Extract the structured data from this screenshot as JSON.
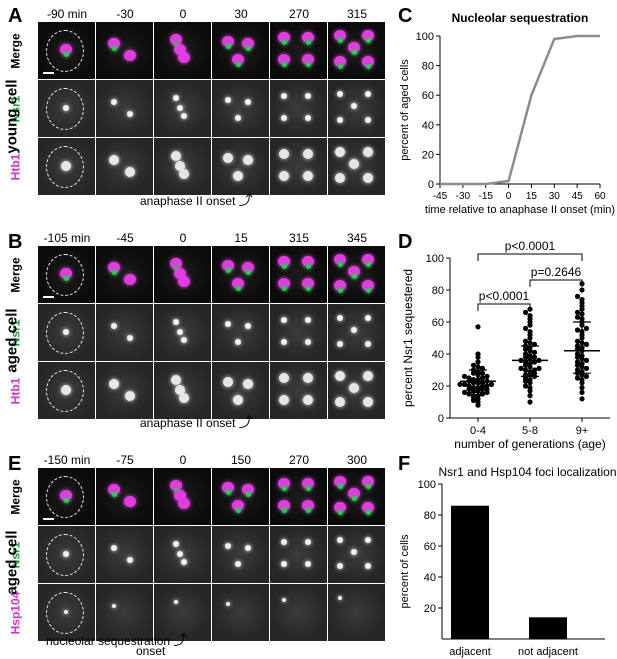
{
  "panels": {
    "A": {
      "letter": "A",
      "cell_type": "young cell",
      "timepoints": [
        "-90 min",
        "-30",
        "0",
        "30",
        "270",
        "315"
      ],
      "rows": [
        "Merge",
        "Nsr1",
        "Htb1"
      ],
      "row_colors": [
        "#000000",
        "#1a9e3a",
        "#d634c8"
      ],
      "onset_label": "anaphase II onset"
    },
    "B": {
      "letter": "B",
      "cell_type": "aged cell",
      "timepoints": [
        "-105 min",
        "-45",
        "0",
        "15",
        "315",
        "345"
      ],
      "rows": [
        "Merge",
        "Nsr1",
        "Htb1"
      ],
      "row_colors": [
        "#000000",
        "#1a9e3a",
        "#d634c8"
      ],
      "onset_label": "anaphase II onset"
    },
    "E": {
      "letter": "E",
      "cell_type": "aged cell",
      "timepoints": [
        "-150 min",
        "-75",
        "0",
        "150",
        "270",
        "300"
      ],
      "rows": [
        "Merge",
        "Nsr1",
        "Hsp104"
      ],
      "row_colors": [
        "#000000",
        "#1a9e3a",
        "#d634c8"
      ],
      "onset_label_line1": "nucleolar sequestration",
      "onset_label_line2": "onset"
    },
    "C": {
      "letter": "C"
    },
    "D": {
      "letter": "D"
    },
    "F": {
      "letter": "F"
    }
  },
  "chart_data": [
    {
      "id": "C",
      "type": "line",
      "title": "Nucleolar sequestration",
      "xlabel": "time relative to anaphase II onset (min)",
      "ylabel": "percent of aged cells",
      "x": [
        -45,
        -30,
        -15,
        0,
        15,
        30,
        45,
        60
      ],
      "x_ticks": [
        "-45",
        "-30",
        "-15",
        "0",
        "15",
        "30",
        "45",
        "60"
      ],
      "y": [
        0,
        0,
        0,
        2,
        60,
        98,
        100,
        100
      ],
      "y_ticks": [
        "0",
        "20",
        "40",
        "60",
        "80",
        "100"
      ],
      "ylim": [
        0,
        100
      ],
      "line_color": "#8c8c8c"
    },
    {
      "id": "D",
      "type": "scatter",
      "xlabel": "number of generations (age)",
      "ylabel": "percent Nsr1 sequestered",
      "categories": [
        "0-4",
        "5-8",
        "9+"
      ],
      "y_ticks": [
        "0",
        "20",
        "40",
        "60",
        "80",
        "100"
      ],
      "ylim": [
        0,
        100
      ],
      "means": [
        23,
        36,
        42
      ],
      "sd_low": [
        16,
        26,
        28
      ],
      "sd_high": [
        30,
        45,
        60
      ],
      "groups": [
        [
          8,
          10,
          11,
          12,
          13,
          14,
          14,
          15,
          15,
          16,
          16,
          17,
          17,
          18,
          18,
          18,
          19,
          19,
          20,
          20,
          20,
          21,
          21,
          21,
          22,
          22,
          22,
          23,
          23,
          24,
          24,
          25,
          25,
          26,
          26,
          27,
          28,
          28,
          29,
          30,
          31,
          32,
          33,
          35,
          38,
          40,
          57
        ],
        [
          10,
          14,
          17,
          19,
          20,
          22,
          23,
          24,
          25,
          26,
          27,
          27,
          28,
          29,
          30,
          30,
          31,
          31,
          32,
          33,
          34,
          35,
          35,
          36,
          36,
          37,
          38,
          38,
          39,
          40,
          41,
          42,
          43,
          44,
          45,
          46,
          47,
          48,
          50,
          52,
          54,
          56,
          58,
          60,
          62,
          64,
          66,
          68
        ],
        [
          12,
          16,
          19,
          22,
          24,
          25,
          26,
          27,
          28,
          29,
          30,
          31,
          32,
          33,
          34,
          35,
          36,
          37,
          38,
          39,
          40,
          42,
          43,
          44,
          45,
          46,
          47,
          48,
          50,
          52,
          54,
          55,
          56,
          58,
          60,
          62,
          63,
          65,
          66,
          68,
          70,
          72,
          74,
          76,
          80,
          84
        ]
      ],
      "comparisons": [
        {
          "label": "p<0.0001",
          "from": 0,
          "to": 2
        },
        {
          "label": "p<0.0001",
          "from": 0,
          "to": 1
        },
        {
          "label": "p=0.2646",
          "from": 1,
          "to": 2
        }
      ]
    },
    {
      "id": "F",
      "type": "bar",
      "title": "Nsr1 and Hsp104 foci localization",
      "ylabel": "percent of cells",
      "categories": [
        "adjacent",
        "not adjacent"
      ],
      "values": [
        86,
        14
      ],
      "y_ticks": [
        "20",
        "40",
        "60",
        "80",
        "100"
      ],
      "ylim": [
        0,
        100
      ]
    }
  ]
}
